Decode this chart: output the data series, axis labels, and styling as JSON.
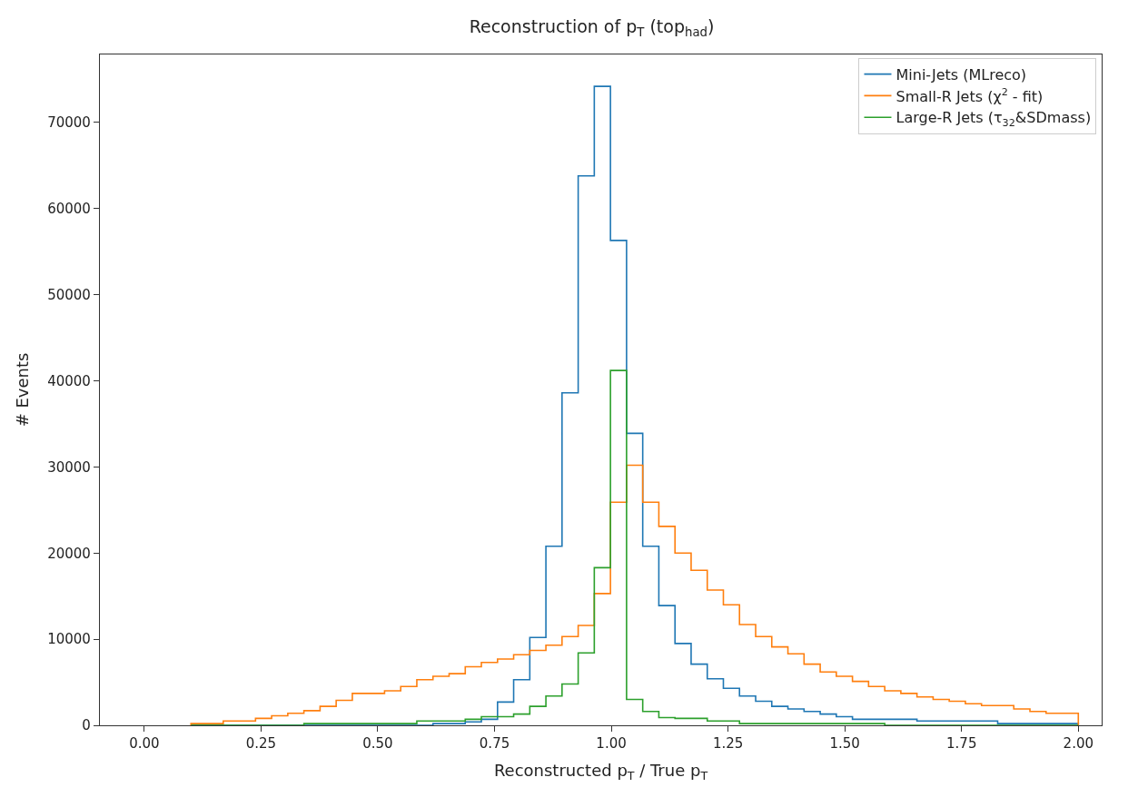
{
  "chart_data": {
    "type": "histogram",
    "title": "Reconstruction of p$_{T}$ (top$_{had}$)",
    "xlabel": "Reconstructed p$_{T}$ / True p$_{T}$",
    "ylabel": "# Events",
    "bins": [
      0.1,
      0.1345,
      0.1691,
      0.2036,
      0.2382,
      0.2727,
      0.3073,
      0.3418,
      0.3764,
      0.4109,
      0.4455,
      0.48,
      0.5145,
      0.5491,
      0.5836,
      0.6182,
      0.6527,
      0.6873,
      0.7218,
      0.7564,
      0.7909,
      0.8255,
      0.86,
      0.8945,
      0.9291,
      0.9636,
      0.9982,
      1.0327,
      1.0673,
      1.1018,
      1.1364,
      1.1709,
      1.2055,
      1.24,
      1.2745,
      1.3091,
      1.3436,
      1.3782,
      1.4127,
      1.4473,
      1.4818,
      1.5164,
      1.5509,
      1.5855,
      1.62,
      1.6545,
      1.6891,
      1.7236,
      1.7582,
      1.7927,
      1.8273,
      1.8618,
      1.8964,
      1.9309,
      1.9655,
      2.0
    ],
    "series": [
      {
        "name": "Mini-Jets (MLreco)",
        "color": "#1f77b4",
        "values": [
          0,
          0,
          0,
          0,
          0,
          0,
          0,
          0,
          0,
          0,
          0,
          0,
          0,
          0,
          0,
          200,
          200,
          400,
          700,
          2700,
          5300,
          10200,
          20800,
          38600,
          63800,
          74200,
          56300,
          33900,
          20800,
          13900,
          9500,
          7100,
          5400,
          4300,
          3400,
          2800,
          2200,
          1900,
          1600,
          1300,
          1000,
          700,
          700,
          700,
          700,
          500,
          500,
          500,
          500,
          500,
          200,
          200,
          200,
          200,
          200
        ]
      },
      {
        "name": "Small-R Jets (χ$^{2}$ - fit)",
        "color": "#ff7f0e",
        "values": [
          200,
          200,
          500,
          500,
          800,
          1100,
          1400,
          1700,
          2200,
          2900,
          3700,
          3700,
          4000,
          4500,
          5300,
          5700,
          6000,
          6800,
          7300,
          7700,
          8200,
          8700,
          9300,
          10300,
          11600,
          15300,
          25900,
          30200,
          25900,
          23100,
          20000,
          18000,
          15700,
          14000,
          11700,
          10300,
          9100,
          8300,
          7100,
          6200,
          5700,
          5100,
          4500,
          4000,
          3700,
          3300,
          3000,
          2800,
          2500,
          2300,
          2300,
          1900,
          1600,
          1400,
          1400
        ]
      },
      {
        "name": "Large-R Jets (τ$_{32}$&SDmass)",
        "color": "#2ca02c",
        "values": [
          0,
          0,
          0,
          0,
          0,
          0,
          0,
          200,
          200,
          200,
          200,
          200,
          200,
          200,
          500,
          500,
          500,
          700,
          1000,
          1000,
          1300,
          2200,
          3400,
          4800,
          8400,
          18300,
          41200,
          3000,
          1600,
          900,
          800,
          800,
          500,
          500,
          200,
          200,
          200,
          200,
          200,
          200,
          200,
          200,
          200,
          0,
          0,
          0,
          0,
          0,
          0,
          0,
          0,
          0,
          0,
          0,
          0
        ]
      }
    ],
    "xlim": [
      -0.095,
      2.05
    ],
    "ylim": [
      0,
      77900
    ],
    "xticks": [
      {
        "value": 0,
        "label": "0.00"
      },
      {
        "value": 0.25,
        "label": "0.25"
      },
      {
        "value": 0.5,
        "label": "0.50"
      },
      {
        "value": 0.75,
        "label": "0.75"
      },
      {
        "value": 1,
        "label": "1.00"
      },
      {
        "value": 1.25,
        "label": "1.25"
      },
      {
        "value": 1.5,
        "label": "1.50"
      },
      {
        "value": 1.75,
        "label": "1.75"
      },
      {
        "value": 2,
        "label": "2.00"
      }
    ],
    "yticks": [
      0,
      10000,
      20000,
      30000,
      40000,
      50000,
      60000,
      70000
    ],
    "legend": "top right"
  }
}
